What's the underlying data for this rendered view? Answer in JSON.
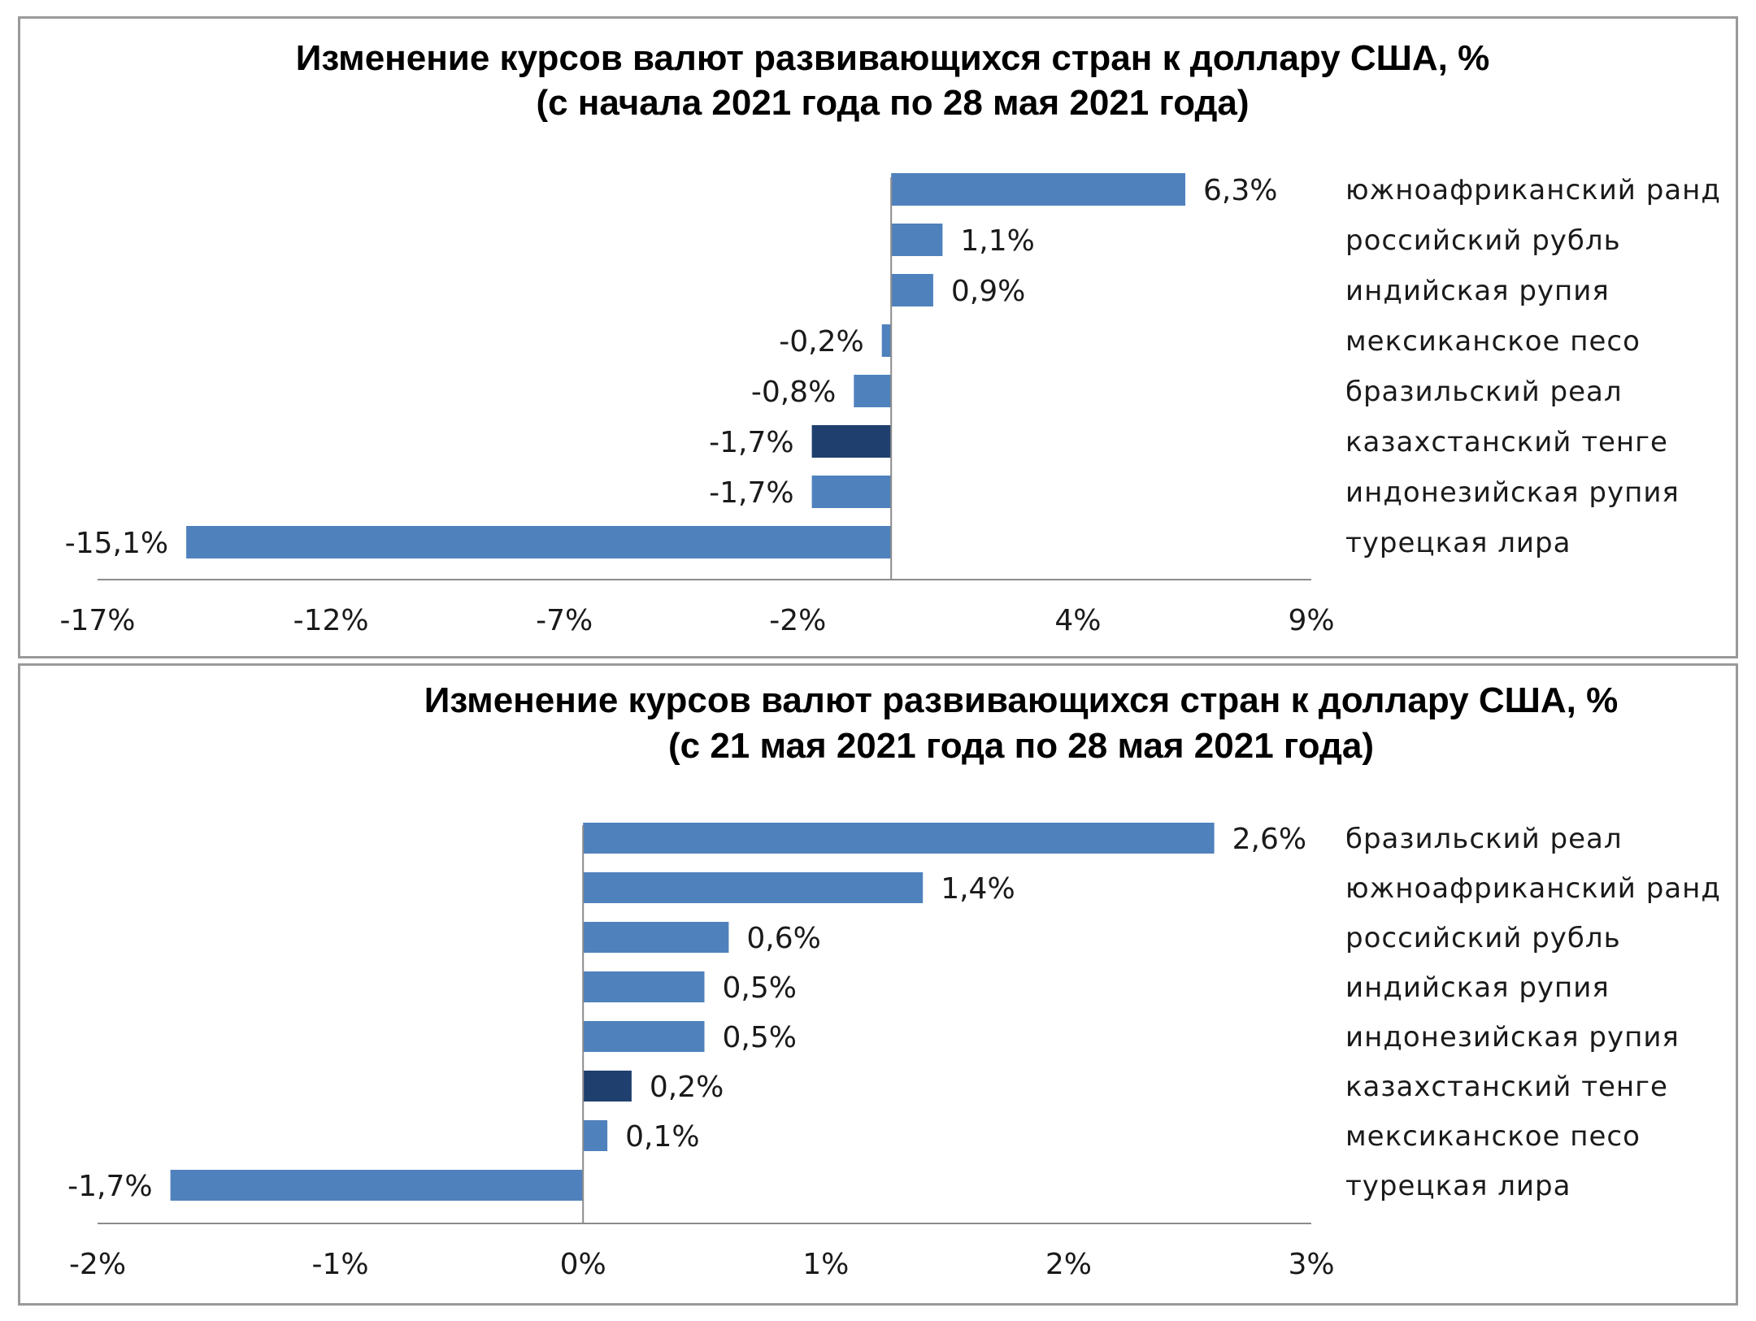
{
  "chart_data": [
    {
      "type": "bar",
      "orientation": "horizontal",
      "title": "Изменение курсов валют развивающихся стран к доллару США, %",
      "subtitle": "(с начала 2021 года по 28 мая 2021 года)",
      "categories": [
        "южноафриканский  ранд",
        "российский рубль",
        "индийская рупия",
        "мексиканское песо",
        "бразильский  реал",
        "казахстанский  тенге",
        "индонезийская  рупия",
        "турецкая лира"
      ],
      "values": [
        6.3,
        1.1,
        0.9,
        -0.2,
        -0.8,
        -1.7,
        -1.7,
        -15.1
      ],
      "data_labels": [
        "6,3%",
        "1,1%",
        "0,9%",
        "-0,2%",
        "-0,8%",
        "-1,7%",
        "-1,7%",
        "-15,1%"
      ],
      "highlight": "казахстанский  тенге",
      "xlim": [
        -17,
        9
      ],
      "xticks": [
        -17,
        -12,
        -7,
        -2,
        4,
        9
      ],
      "xtick_labels": [
        "-17%",
        "-12%",
        "-7%",
        "-2%",
        "4%",
        "9%"
      ],
      "colors": {
        "bar": "#4f81bd",
        "highlight": "#1f3f6e",
        "axis": "#8c8c8c"
      },
      "grid": false,
      "legend": "none"
    },
    {
      "type": "bar",
      "orientation": "horizontal",
      "title": "Изменение курсов валют развивающихся стран к доллару США, %",
      "subtitle": "(с 21 мая 2021 года по 28 мая 2021 года)",
      "categories": [
        "бразильский  реал",
        "южноафриканский  ранд",
        "российский рубль",
        "индийская рупия",
        "индонезийская  рупия",
        "казахстанский  тенге",
        "мексиканское песо",
        "турецкая лира"
      ],
      "values": [
        2.6,
        1.4,
        0.6,
        0.5,
        0.5,
        0.2,
        0.1,
        -1.7
      ],
      "data_labels": [
        "2,6%",
        "1,4%",
        "0,6%",
        "0,5%",
        "0,5%",
        "0,2%",
        "0,1%",
        "-1,7%"
      ],
      "highlight": "казахстанский  тенге",
      "xlim": [
        -2,
        3
      ],
      "xticks": [
        -2,
        -1,
        0,
        1,
        2,
        3
      ],
      "xtick_labels": [
        "-2%",
        "-1%",
        "0%",
        "1%",
        "2%",
        "3%"
      ],
      "colors": {
        "bar": "#4f81bd",
        "highlight": "#1f3f6e",
        "axis": "#8c8c8c"
      },
      "grid": false,
      "legend": "none"
    }
  ]
}
